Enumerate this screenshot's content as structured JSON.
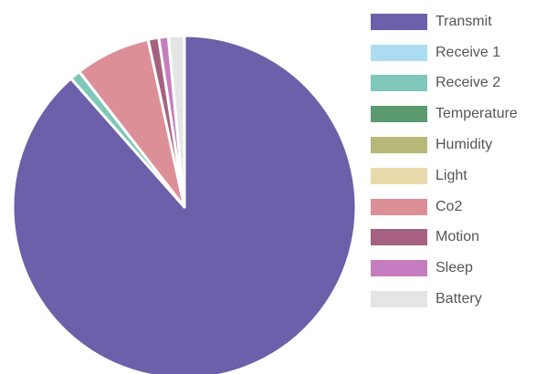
{
  "chart_data": {
    "type": "pie",
    "title": "",
    "legend_position": "right",
    "series": [
      {
        "label": "Transmit",
        "value": 88.5,
        "color": "#6b60a9"
      },
      {
        "label": "Receive 1",
        "value": 0.0,
        "color": "#abdcf1"
      },
      {
        "label": "Receive 2",
        "value": 1.0,
        "color": "#7fc7b8"
      },
      {
        "label": "Temperature",
        "value": 0.0,
        "color": "#5a9a6e"
      },
      {
        "label": "Humidity",
        "value": 0.0,
        "color": "#b7b878"
      },
      {
        "label": "Light",
        "value": 0.0,
        "color": "#e8daaa"
      },
      {
        "label": "Co2",
        "value": 7.1,
        "color": "#dd8f98"
      },
      {
        "label": "Motion",
        "value": 1.0,
        "color": "#a5617f"
      },
      {
        "label": "Sleep",
        "value": 0.9,
        "color": "#c67dbf"
      },
      {
        "label": "Battery",
        "value": 1.5,
        "color": "#e5e5e5"
      }
    ]
  }
}
